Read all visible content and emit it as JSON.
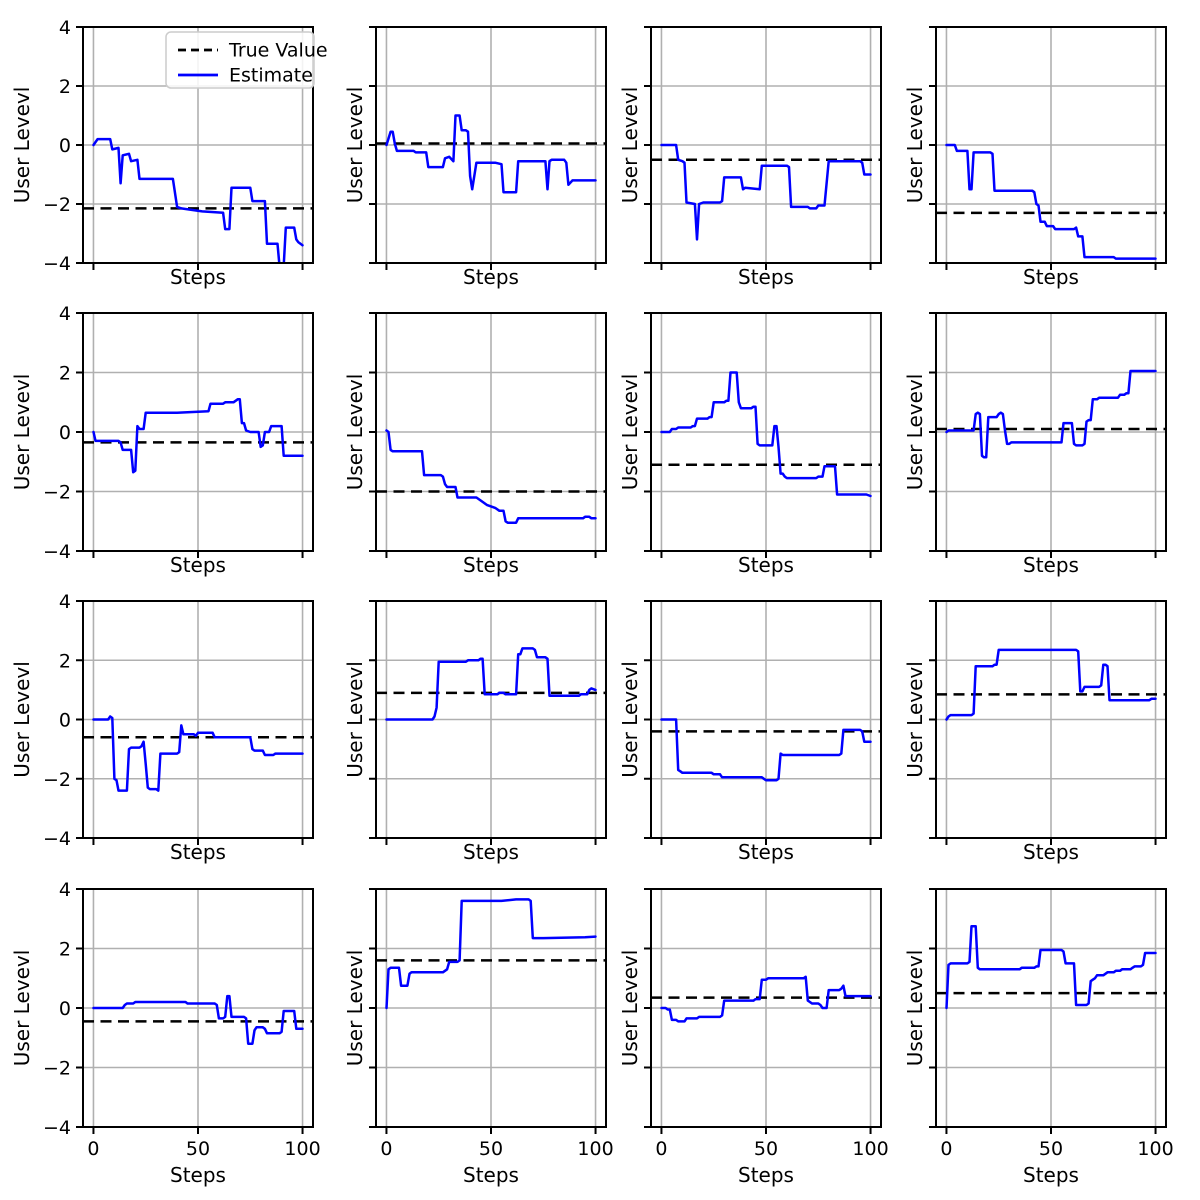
{
  "figure": {
    "ylabel": "User Levevl",
    "xlabel": "Steps",
    "yticks": [
      -4,
      -2,
      0,
      2,
      4
    ],
    "xticks": [
      0,
      50,
      100
    ],
    "ylim": [
      -4,
      4
    ],
    "xlim": [
      -5,
      105
    ],
    "grid": true,
    "legend": {
      "position": "upper-right-of-first-subplot",
      "entries": [
        {
          "label": "True Value",
          "style": "dashed",
          "color": "#000000"
        },
        {
          "label": "Estimate",
          "style": "solid",
          "color": "#0000ff"
        }
      ]
    },
    "colors": {
      "estimate": "#0000ff",
      "true_value": "#000000",
      "grid": "#b0b0b0",
      "spine": "#000000",
      "background": "#ffffff",
      "legend_border": "#cccccc"
    }
  },
  "chart_data": [
    {
      "type": "line",
      "row": 0,
      "col": 0,
      "true_value": -2.15,
      "x": [
        0,
        2,
        8,
        9,
        12,
        13,
        14,
        17,
        18,
        21,
        22,
        38,
        40,
        42,
        47,
        52,
        62,
        63,
        65,
        66,
        75,
        76,
        82,
        83,
        88,
        89,
        91,
        92,
        96,
        97,
        98,
        100
      ],
      "y": [
        0,
        0.2,
        0.2,
        -0.15,
        -0.1,
        -1.3,
        -0.35,
        -0.3,
        -0.55,
        -0.5,
        -1.15,
        -1.15,
        -2.1,
        -2.15,
        -2.2,
        -2.25,
        -2.3,
        -2.85,
        -2.85,
        -1.45,
        -1.45,
        -1.9,
        -1.9,
        -3.35,
        -3.35,
        -4.1,
        -4.1,
        -2.8,
        -2.8,
        -3.2,
        -3.3,
        -3.4
      ]
    },
    {
      "type": "line",
      "row": 0,
      "col": 1,
      "true_value": 0.05,
      "x": [
        0,
        2,
        3,
        4,
        5,
        13,
        14,
        19,
        20,
        27,
        28,
        30,
        32,
        33,
        35,
        36,
        38,
        39,
        40,
        41,
        43,
        52,
        55,
        56,
        62,
        63,
        76,
        77,
        78,
        79,
        85,
        86,
        87,
        89,
        100
      ],
      "y": [
        0,
        0.45,
        0.45,
        0.05,
        -0.2,
        -0.2,
        -0.25,
        -0.25,
        -0.75,
        -0.75,
        -0.45,
        -0.4,
        -0.55,
        1.0,
        1.0,
        0.5,
        0.5,
        0.45,
        -1.05,
        -1.5,
        -0.6,
        -0.6,
        -0.65,
        -1.6,
        -1.6,
        -0.55,
        -0.55,
        -1.5,
        -0.55,
        -0.5,
        -0.5,
        -0.6,
        -1.35,
        -1.2,
        -1.2
      ]
    },
    {
      "type": "line",
      "row": 0,
      "col": 2,
      "true_value": -0.5,
      "x": [
        0,
        7,
        8,
        10,
        11,
        12,
        16,
        17,
        18,
        20,
        28,
        29,
        30,
        38,
        39,
        40,
        47,
        48,
        60,
        61,
        62,
        70,
        71,
        74,
        75,
        78,
        80,
        95,
        96,
        97,
        100
      ],
      "y": [
        0,
        0,
        -0.5,
        -0.55,
        -0.6,
        -1.95,
        -2.0,
        -3.2,
        -2.0,
        -1.95,
        -1.95,
        -1.9,
        -1.1,
        -1.1,
        -1.5,
        -1.45,
        -1.5,
        -0.7,
        -0.7,
        -0.75,
        -2.1,
        -2.1,
        -2.15,
        -2.15,
        -2.05,
        -2.05,
        -0.55,
        -0.55,
        -0.6,
        -1.0,
        -1.0
      ]
    },
    {
      "type": "line",
      "row": 0,
      "col": 3,
      "true_value": -2.3,
      "x": [
        0,
        4,
        5,
        10,
        11,
        12,
        13,
        21,
        22,
        23,
        41,
        42,
        43,
        44,
        45,
        47,
        48,
        51,
        52,
        61,
        62,
        63,
        65,
        66,
        80,
        81,
        100
      ],
      "y": [
        0,
        0,
        -0.2,
        -0.2,
        -1.5,
        -1.5,
        -0.25,
        -0.25,
        -0.3,
        -1.55,
        -1.55,
        -1.6,
        -2.0,
        -2.05,
        -2.6,
        -2.6,
        -2.75,
        -2.75,
        -2.85,
        -2.85,
        -2.8,
        -3.1,
        -3.1,
        -3.8,
        -3.8,
        -3.85,
        -3.85
      ]
    },
    {
      "type": "line",
      "row": 1,
      "col": 0,
      "true_value": -0.35,
      "x": [
        0,
        1,
        12,
        13,
        14,
        18,
        19,
        20,
        21,
        22,
        24,
        25,
        40,
        50,
        55,
        56,
        62,
        63,
        67,
        68,
        69,
        70,
        71,
        72,
        73,
        75,
        79,
        80,
        81,
        82,
        84,
        85,
        90,
        91,
        100
      ],
      "y": [
        0,
        -0.3,
        -0.3,
        -0.35,
        -0.6,
        -0.6,
        -1.35,
        -1.3,
        0.2,
        0.1,
        0.1,
        0.65,
        0.65,
        0.68,
        0.7,
        0.95,
        0.95,
        1.0,
        1.0,
        1.05,
        1.1,
        1.1,
        0.3,
        0.3,
        0.05,
        0.0,
        0.0,
        -0.5,
        -0.45,
        0.0,
        0.0,
        0.2,
        0.2,
        -0.8,
        -0.8
      ]
    },
    {
      "type": "line",
      "row": 1,
      "col": 1,
      "true_value": -2.0,
      "x": [
        0,
        1,
        2,
        3,
        17,
        18,
        26,
        27,
        28,
        29,
        33,
        34,
        43,
        45,
        48,
        52,
        54,
        56,
        57,
        58,
        62,
        63,
        94,
        95,
        97,
        98,
        100
      ],
      "y": [
        0.05,
        0.0,
        -0.6,
        -0.65,
        -0.65,
        -1.45,
        -1.45,
        -1.5,
        -1.75,
        -1.85,
        -1.85,
        -2.2,
        -2.2,
        -2.3,
        -2.45,
        -2.55,
        -2.65,
        -2.65,
        -3.0,
        -3.05,
        -3.05,
        -2.9,
        -2.9,
        -2.85,
        -2.85,
        -2.9,
        -2.9
      ]
    },
    {
      "type": "line",
      "row": 1,
      "col": 2,
      "true_value": -1.1,
      "x": [
        0,
        4,
        5,
        7,
        8,
        14,
        15,
        16,
        17,
        22,
        23,
        24,
        25,
        30,
        31,
        32,
        33,
        36,
        37,
        38,
        43,
        44,
        45,
        46,
        47,
        52,
        53,
        54,
        55,
        56,
        57,
        58,
        59,
        60,
        74,
        75,
        77,
        78,
        83,
        84,
        98,
        100
      ],
      "y": [
        0,
        0,
        0.1,
        0.1,
        0.15,
        0.15,
        0.2,
        0.2,
        0.45,
        0.45,
        0.5,
        0.5,
        1.0,
        1.0,
        1.05,
        1.05,
        2.0,
        2.0,
        1.0,
        0.8,
        0.8,
        0.85,
        0.85,
        -0.4,
        -0.45,
        -0.45,
        -0.45,
        0.2,
        0.2,
        -0.5,
        -1.4,
        -1.4,
        -1.5,
        -1.55,
        -1.55,
        -1.5,
        -1.5,
        -1.15,
        -1.15,
        -2.1,
        -2.1,
        -2.15
      ]
    },
    {
      "type": "line",
      "row": 1,
      "col": 3,
      "true_value": 0.1,
      "x": [
        0,
        1,
        13,
        14,
        15,
        16,
        17,
        18,
        19,
        20,
        24,
        25,
        26,
        27,
        28,
        29,
        30,
        31,
        55,
        56,
        60,
        61,
        62,
        65,
        66,
        67,
        68,
        69,
        70,
        72,
        73,
        82,
        83,
        85,
        86,
        87,
        88,
        92,
        100
      ],
      "y": [
        0,
        0.05,
        0.05,
        0.6,
        0.65,
        0.6,
        -0.8,
        -0.85,
        -0.85,
        0.5,
        0.5,
        0.6,
        0.65,
        0.6,
        0.05,
        -0.4,
        -0.4,
        -0.35,
        -0.35,
        0.3,
        0.3,
        -0.4,
        -0.45,
        -0.45,
        -0.4,
        0.35,
        0.4,
        0.4,
        1.1,
        1.1,
        1.15,
        1.15,
        1.25,
        1.25,
        1.3,
        1.3,
        2.05,
        2.05,
        2.05
      ]
    },
    {
      "type": "line",
      "row": 2,
      "col": 0,
      "true_value": -0.6,
      "x": [
        0,
        7,
        8,
        9,
        10,
        11,
        12,
        16,
        17,
        18,
        22,
        23,
        24,
        25,
        26,
        27,
        30,
        31,
        32,
        40,
        41,
        42,
        43,
        48,
        49,
        50,
        57,
        58,
        75,
        76,
        77,
        81,
        82,
        86,
        87,
        100
      ],
      "y": [
        0,
        0,
        0.1,
        0.05,
        -2.0,
        -2.05,
        -2.4,
        -2.4,
        -1.0,
        -0.95,
        -0.95,
        -0.9,
        -0.75,
        -1.5,
        -2.3,
        -2.35,
        -2.35,
        -2.4,
        -1.15,
        -1.15,
        -1.1,
        -0.2,
        -0.5,
        -0.5,
        -0.55,
        -0.45,
        -0.45,
        -0.6,
        -0.6,
        -1.0,
        -1.05,
        -1.05,
        -1.2,
        -1.2,
        -1.15,
        -1.15
      ]
    },
    {
      "type": "line",
      "row": 2,
      "col": 1,
      "true_value": 0.9,
      "x": [
        0,
        22,
        23,
        24,
        25,
        38,
        39,
        44,
        45,
        46,
        47,
        53,
        54,
        56,
        57,
        62,
        63,
        64,
        65,
        70,
        71,
        72,
        76,
        77,
        78,
        92,
        93,
        96,
        97,
        98,
        100
      ],
      "y": [
        0,
        0,
        0.1,
        0.4,
        1.95,
        1.95,
        2.0,
        2.0,
        2.05,
        2.05,
        0.85,
        0.85,
        0.9,
        0.9,
        0.85,
        0.85,
        2.2,
        2.2,
        2.4,
        2.4,
        2.35,
        2.1,
        2.1,
        2.05,
        0.8,
        0.8,
        0.85,
        0.85,
        1.0,
        1.05,
        1.0
      ]
    },
    {
      "type": "line",
      "row": 2,
      "col": 2,
      "true_value": -0.4,
      "x": [
        0,
        7,
        8,
        9,
        10,
        24,
        25,
        28,
        29,
        48,
        49,
        50,
        55,
        56,
        57,
        58,
        85,
        86,
        87,
        95,
        96,
        97,
        100
      ],
      "y": [
        0,
        0,
        -1.7,
        -1.75,
        -1.8,
        -1.8,
        -1.85,
        -1.85,
        -1.95,
        -1.95,
        -2.0,
        -2.05,
        -2.05,
        -2.0,
        -1.15,
        -1.2,
        -1.2,
        -1.15,
        -0.35,
        -0.35,
        -0.4,
        -0.75,
        -0.75
      ]
    },
    {
      "type": "line",
      "row": 2,
      "col": 3,
      "true_value": 0.85,
      "x": [
        0,
        1,
        2,
        12,
        13,
        14,
        22,
        23,
        24,
        25,
        62,
        63,
        64,
        65,
        66,
        73,
        74,
        75,
        76,
        77,
        78,
        97,
        98,
        100
      ],
      "y": [
        0,
        0.1,
        0.15,
        0.15,
        0.2,
        1.8,
        1.8,
        1.85,
        1.85,
        2.35,
        2.35,
        2.3,
        0.95,
        0.95,
        1.1,
        1.1,
        1.15,
        1.85,
        1.85,
        1.8,
        0.65,
        0.65,
        0.7,
        0.7
      ]
    },
    {
      "type": "line",
      "row": 3,
      "col": 0,
      "true_value": -0.45,
      "x": [
        0,
        14,
        15,
        16,
        19,
        20,
        44,
        45,
        58,
        59,
        60,
        62,
        63,
        64,
        65,
        66,
        72,
        73,
        74,
        76,
        77,
        78,
        81,
        82,
        83,
        89,
        90,
        91,
        96,
        97,
        100
      ],
      "y": [
        0,
        0,
        0.1,
        0.15,
        0.15,
        0.2,
        0.2,
        0.15,
        0.15,
        0.1,
        -0.35,
        -0.35,
        -0.3,
        0.4,
        0.4,
        -0.3,
        -0.3,
        -0.35,
        -1.2,
        -1.2,
        -0.75,
        -0.65,
        -0.65,
        -0.7,
        -0.85,
        -0.85,
        -0.8,
        -0.1,
        -0.1,
        -0.7,
        -0.7
      ]
    },
    {
      "type": "line",
      "row": 3,
      "col": 1,
      "true_value": 1.6,
      "x": [
        0,
        1,
        2,
        6,
        7,
        10,
        11,
        12,
        27,
        28,
        29,
        30,
        34,
        35,
        36,
        55,
        62,
        68,
        69,
        70,
        75,
        95,
        100
      ],
      "y": [
        0,
        1.3,
        1.35,
        1.35,
        0.75,
        0.75,
        1.15,
        1.2,
        1.2,
        1.25,
        1.3,
        1.55,
        1.55,
        1.6,
        3.6,
        3.6,
        3.65,
        3.65,
        3.6,
        2.35,
        2.35,
        2.38,
        2.4
      ]
    },
    {
      "type": "line",
      "row": 3,
      "col": 2,
      "true_value": 0.35,
      "x": [
        0,
        2,
        3,
        4,
        5,
        7,
        8,
        11,
        12,
        17,
        18,
        28,
        29,
        30,
        44,
        45,
        47,
        48,
        50,
        51,
        68,
        69,
        70,
        71,
        72,
        75,
        76,
        77,
        79,
        80,
        85,
        86,
        87,
        88,
        100
      ],
      "y": [
        0,
        0,
        -0.05,
        -0.05,
        -0.4,
        -0.4,
        -0.45,
        -0.45,
        -0.35,
        -0.35,
        -0.3,
        -0.3,
        -0.25,
        0.25,
        0.25,
        0.3,
        0.3,
        0.95,
        0.95,
        1.0,
        1.0,
        1.05,
        0.25,
        0.2,
        0.15,
        0.15,
        0.1,
        0.0,
        0.0,
        0.6,
        0.6,
        0.65,
        0.75,
        0.4,
        0.4
      ]
    },
    {
      "type": "line",
      "row": 3,
      "col": 3,
      "true_value": 0.5,
      "x": [
        0,
        1,
        2,
        10,
        11,
        12,
        14,
        15,
        16,
        35,
        36,
        42,
        43,
        44,
        45,
        55,
        56,
        57,
        61,
        62,
        67,
        68,
        69,
        70,
        71,
        72,
        75,
        76,
        77,
        80,
        81,
        83,
        84,
        88,
        89,
        90,
        93,
        94,
        95,
        97,
        100
      ],
      "y": [
        0,
        1.45,
        1.5,
        1.5,
        1.55,
        2.75,
        2.75,
        1.35,
        1.3,
        1.3,
        1.35,
        1.35,
        1.4,
        1.4,
        1.95,
        1.95,
        1.9,
        1.5,
        1.5,
        0.1,
        0.1,
        0.15,
        0.9,
        0.95,
        1.0,
        1.1,
        1.1,
        1.15,
        1.2,
        1.2,
        1.25,
        1.25,
        1.3,
        1.3,
        1.35,
        1.4,
        1.4,
        1.45,
        1.85,
        1.85,
        1.85
      ]
    }
  ]
}
